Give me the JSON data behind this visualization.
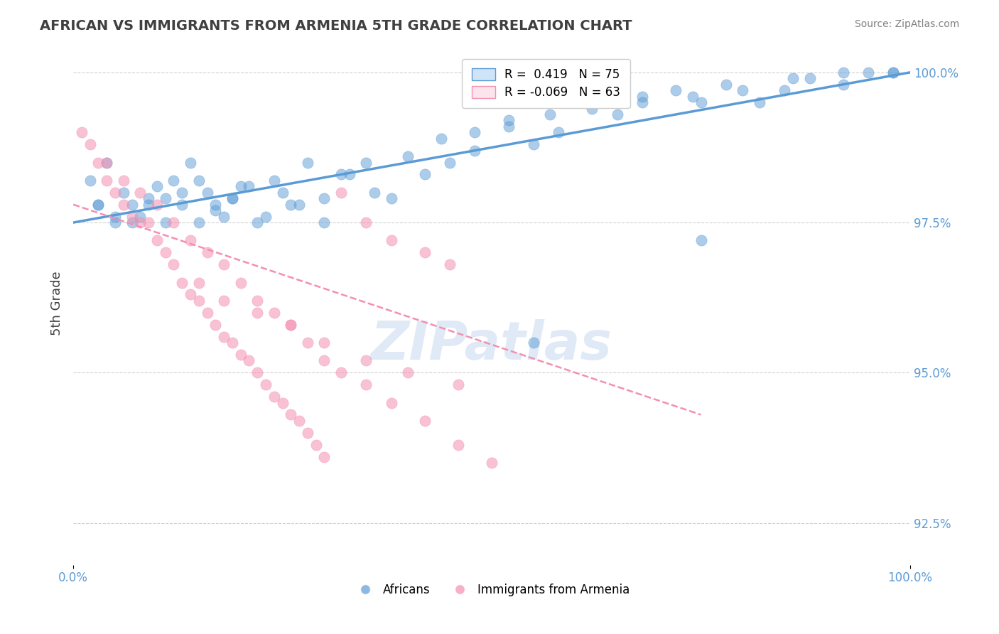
{
  "title": "AFRICAN VS IMMIGRANTS FROM ARMENIA 5TH GRADE CORRELATION CHART",
  "source_text": "Source: ZipAtlas.com",
  "xlabel": "",
  "ylabel": "5th Grade",
  "xlim": [
    0.0,
    100.0
  ],
  "ylim": [
    91.8,
    100.5
  ],
  "yticks": [
    92.5,
    95.0,
    97.5,
    100.0
  ],
  "ytick_labels": [
    "92.5%",
    "95.0%",
    "97.5%",
    "100.0%"
  ],
  "legend_entries": [
    {
      "label": "R =  0.419   N = 75",
      "color": "#6baed6"
    },
    {
      "label": "R = -0.069   N = 63",
      "color": "#f4a0b5"
    }
  ],
  "legend_labels": [
    "Africans",
    "Immigrants from Armenia"
  ],
  "watermark": "ZIPatlas",
  "blue_color": "#5b9bd5",
  "pink_color": "#f48fb1",
  "title_color": "#404040",
  "axis_color": "#5b9bd5",
  "grid_color": "#d0d0d0",
  "blue_scatter_x": [
    2,
    3,
    4,
    5,
    6,
    7,
    8,
    9,
    10,
    11,
    12,
    13,
    14,
    15,
    16,
    17,
    18,
    19,
    20,
    22,
    24,
    26,
    28,
    30,
    32,
    35,
    38,
    42,
    45,
    48,
    52,
    55,
    58,
    62,
    65,
    68,
    72,
    75,
    78,
    82,
    85,
    88,
    92,
    95,
    98,
    3,
    5,
    7,
    9,
    11,
    13,
    15,
    17,
    19,
    21,
    23,
    25,
    27,
    30,
    33,
    36,
    40,
    44,
    48,
    52,
    57,
    62,
    68,
    74,
    80,
    86,
    92,
    98,
    55,
    75
  ],
  "blue_scatter_y": [
    98.2,
    97.8,
    98.5,
    97.5,
    98.0,
    97.8,
    97.6,
    97.9,
    98.1,
    97.5,
    98.2,
    97.8,
    98.5,
    97.5,
    98.0,
    97.8,
    97.6,
    97.9,
    98.1,
    97.5,
    98.2,
    97.8,
    98.5,
    97.5,
    98.3,
    98.5,
    97.9,
    98.3,
    98.5,
    99.0,
    99.2,
    98.8,
    99.0,
    99.5,
    99.3,
    99.6,
    99.7,
    99.5,
    99.8,
    99.5,
    99.7,
    99.9,
    99.8,
    100.0,
    100.0,
    97.8,
    97.6,
    97.5,
    97.8,
    97.9,
    98.0,
    98.2,
    97.7,
    97.9,
    98.1,
    97.6,
    98.0,
    97.8,
    97.9,
    98.3,
    98.0,
    98.6,
    98.9,
    98.7,
    99.1,
    99.3,
    99.4,
    99.5,
    99.6,
    99.7,
    99.9,
    100.0,
    100.0,
    95.5,
    97.2
  ],
  "pink_scatter_x": [
    1,
    2,
    3,
    4,
    5,
    6,
    7,
    8,
    9,
    10,
    11,
    12,
    13,
    14,
    15,
    16,
    17,
    18,
    19,
    20,
    21,
    22,
    23,
    24,
    25,
    26,
    27,
    28,
    29,
    30,
    32,
    35,
    38,
    42,
    45,
    15,
    18,
    22,
    26,
    30,
    35,
    40,
    46,
    4,
    6,
    8,
    10,
    12,
    14,
    16,
    18,
    20,
    22,
    24,
    26,
    28,
    30,
    32,
    35,
    38,
    42,
    46,
    50
  ],
  "pink_scatter_y": [
    99.0,
    98.8,
    98.5,
    98.2,
    98.0,
    97.8,
    97.6,
    97.5,
    97.5,
    97.2,
    97.0,
    96.8,
    96.5,
    96.3,
    96.2,
    96.0,
    95.8,
    95.6,
    95.5,
    95.3,
    95.2,
    95.0,
    94.8,
    94.6,
    94.5,
    94.3,
    94.2,
    94.0,
    93.8,
    93.6,
    98.0,
    97.5,
    97.2,
    97.0,
    96.8,
    96.5,
    96.2,
    96.0,
    95.8,
    95.5,
    95.2,
    95.0,
    94.8,
    98.5,
    98.2,
    98.0,
    97.8,
    97.5,
    97.2,
    97.0,
    96.8,
    96.5,
    96.2,
    96.0,
    95.8,
    95.5,
    95.2,
    95.0,
    94.8,
    94.5,
    94.2,
    93.8,
    93.5
  ],
  "blue_line_x": [
    0,
    100
  ],
  "blue_line_y": [
    97.5,
    100.0
  ],
  "pink_line_x": [
    0,
    75
  ],
  "pink_line_y": [
    97.8,
    94.3
  ],
  "figsize": [
    14.06,
    8.92
  ],
  "dpi": 100
}
